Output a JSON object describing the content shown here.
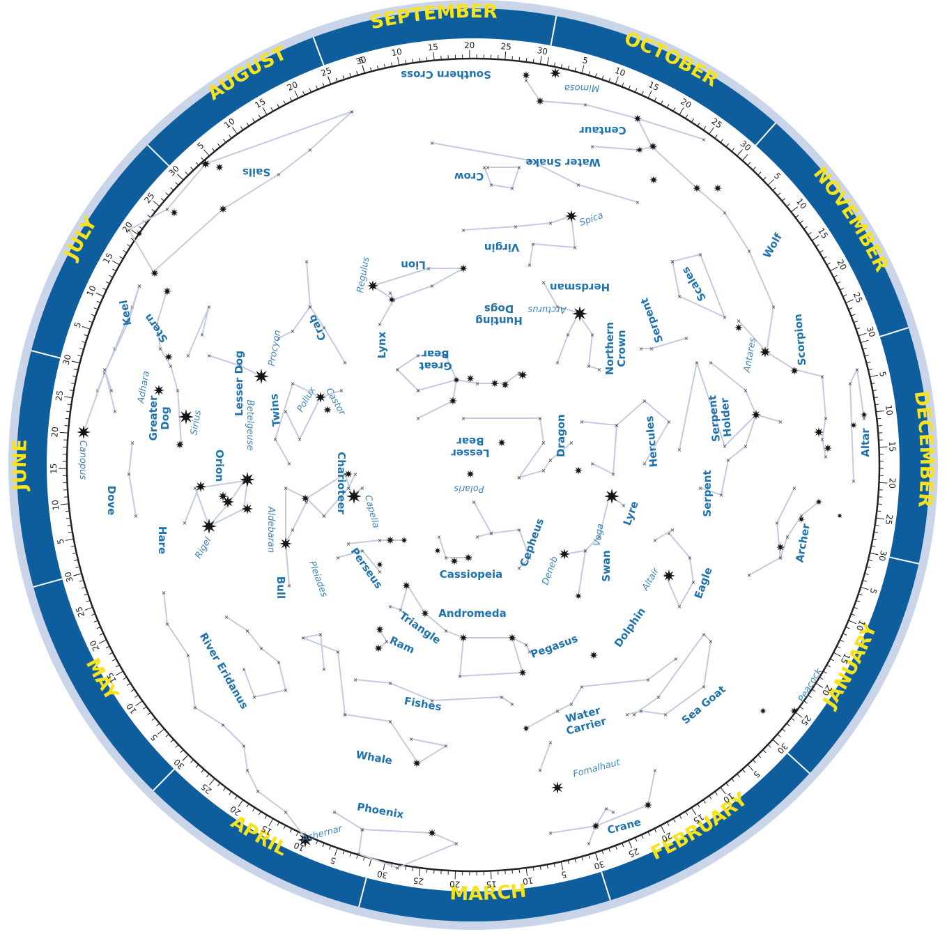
{
  "planisphere": {
    "colors": {
      "outer_ring": "#cbd5ea",
      "month_band": "#0e5e9e",
      "month_text": "#f7e21e",
      "line": "#c3cbe2",
      "label": "#1f72ad",
      "star": "#151515"
    },
    "months": [
      {
        "name": "JANUARY",
        "start_day": 20
      },
      {
        "name": "FEBRUARY",
        "start_day": 20
      },
      {
        "name": "MARCH",
        "start_day": 20
      },
      {
        "name": "APRIL",
        "start_day": 20
      },
      {
        "name": "MAY",
        "start_day": 20
      },
      {
        "name": "JUNE",
        "start_day": 20
      },
      {
        "name": "JULY",
        "start_day": 20
      },
      {
        "name": "AUGUST",
        "start_day": 20
      },
      {
        "name": "SEPTEMBER",
        "start_day": 20
      },
      {
        "name": "OCTOBER",
        "start_day": 20
      },
      {
        "name": "NOVEMBER",
        "start_day": 20
      },
      {
        "name": "DECEMBER",
        "start_day": 20
      }
    ],
    "constellations": [
      "Southern Cross",
      "Centaur",
      "Water Snake",
      "Crow",
      "Sails",
      "Virgin",
      "Lion",
      "Wolf",
      "Scales",
      "Hunting Dogs",
      "Herdsman",
      "Serpent",
      "Northern Crown",
      "Scorpion",
      "Lynx",
      "Great Bear",
      "Crab",
      "Lesser Dog",
      "Keel",
      "Stern",
      "Greater Dog",
      "Twins",
      "Serpent Holder",
      "Lesser Bear",
      "Dragon",
      "Hercules",
      "Altar",
      "Orion",
      "Charioteer",
      "Dove",
      "Serpent",
      "Lyre",
      "Cepheus",
      "Hare",
      "Perseus",
      "Archer",
      "Bull",
      "Cassiopeia",
      "Swan",
      "Eagle",
      "Andromeda",
      "Dolphin",
      "Triangle",
      "Ram",
      "Pegasus",
      "River Eridanus",
      "Fishes",
      "Water Carrier",
      "Sea Goat",
      "Whale",
      "Phoenix",
      "Crane"
    ],
    "stars": [
      "Mimosa",
      "Spica",
      "Regulus",
      "Arcturus",
      "Antares",
      "Procyon",
      "Pollux",
      "Castor",
      "Adhara",
      "Sirius",
      "Canopus",
      "Betelgeuse",
      "Polaris",
      "Capella",
      "Vega",
      "Aldebaran",
      "Rigel",
      "Deneb",
      "Altair",
      "Pleiades",
      "Peacock",
      "Fomalhaut",
      "Achernar"
    ]
  }
}
